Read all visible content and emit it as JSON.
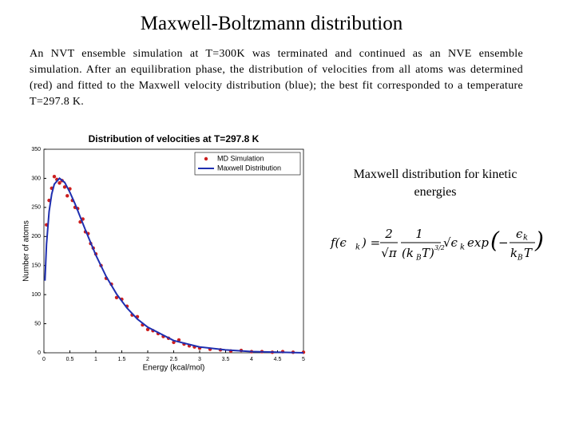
{
  "title": "Maxwell-Boltzmann distribution",
  "paragraph": "An NVT ensemble simulation at T=300K was terminated and continued as an NVE ensemble simulation. After an equilibration phase, the distribution of velocities from all atoms was determined (red) and fitted to the Maxwell velocity distribution (blue); the best fit corresponded to a temperature T=297.8 K.",
  "caption": "Maxwell distribution for kinetic energies",
  "formula": {
    "lhs": "f(ϵ",
    "lhs_sub": "k",
    "eq": ") =",
    "n1": "2",
    "d1": "√π",
    "n2": "1",
    "d2a": "(k",
    "d2b": "B",
    "d2c": "T)",
    "d2exp": "3/2",
    "root": "√ϵ",
    "root_sub": "k",
    "exp": "exp",
    "lp": "(",
    "minus": "−",
    "n3": "ϵ",
    "n3_sub": "k",
    "d3a": "k",
    "d3b": "B",
    "d3c": "T",
    "rp": ")"
  },
  "chart_data": {
    "type": "line",
    "title": "Distribution of velocities at T=297.8 K",
    "x_label": "Energy (kcal/mol)",
    "y_label": "Number of atoms",
    "xlim": [
      0,
      5
    ],
    "ylim": [
      0,
      350
    ],
    "xticks": [
      0,
      0.5,
      1,
      1.5,
      2,
      2.5,
      3,
      3.5,
      4,
      4.5,
      5
    ],
    "yticks": [
      0,
      50,
      100,
      150,
      200,
      250,
      300,
      350
    ],
    "grid": false,
    "legend": "upper right",
    "series": [
      {
        "name": "MD Simulation",
        "color": "#cc1f1f",
        "mode": "markers",
        "x": [
          0.05,
          0.1,
          0.15,
          0.2,
          0.25,
          0.3,
          0.35,
          0.4,
          0.45,
          0.5,
          0.55,
          0.6,
          0.65,
          0.7,
          0.75,
          0.8,
          0.85,
          0.9,
          0.95,
          1.0,
          1.1,
          1.2,
          1.3,
          1.4,
          1.5,
          1.6,
          1.7,
          1.8,
          1.9,
          2.0,
          2.1,
          2.2,
          2.3,
          2.4,
          2.5,
          2.6,
          2.7,
          2.8,
          2.9,
          3.0,
          3.2,
          3.4,
          3.6,
          3.8,
          4.0,
          4.2,
          4.4,
          4.6,
          4.8,
          5.0
        ],
        "values": [
          220,
          262,
          283,
          303,
          298,
          292,
          296,
          285,
          270,
          282,
          262,
          250,
          248,
          225,
          230,
          208,
          205,
          188,
          180,
          170,
          150,
          128,
          118,
          95,
          92,
          80,
          65,
          62,
          48,
          40,
          38,
          33,
          28,
          25,
          18,
          22,
          15,
          12,
          10,
          8,
          6,
          5,
          3,
          4,
          2,
          2,
          1,
          2,
          1,
          1
        ]
      },
      {
        "name": "Maxwell Distribution",
        "color": "#1f2fb0",
        "mode": "line",
        "x": [
          0.02,
          0.05,
          0.1,
          0.15,
          0.2,
          0.3,
          0.4,
          0.5,
          0.6,
          0.8,
          1.0,
          1.2,
          1.4,
          1.6,
          1.8,
          2.0,
          2.5,
          3.0,
          3.5,
          4.0,
          4.5,
          5.0
        ],
        "values": [
          124,
          187,
          243,
          273,
          290,
          300,
          293,
          276,
          256,
          211,
          168,
          131,
          101,
          77,
          58,
          44,
          21,
          10,
          5,
          2,
          1,
          0
        ]
      }
    ]
  }
}
